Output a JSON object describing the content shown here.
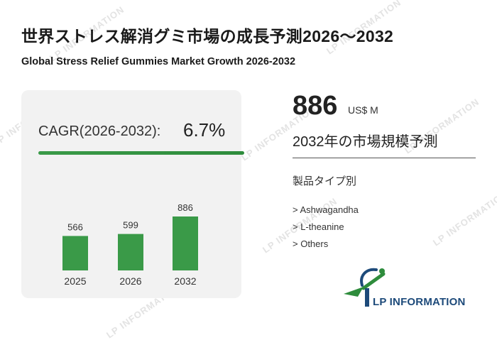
{
  "header": {
    "title_jp": "世界ストレス解消グミ市場の成長予測2026～2032",
    "title_en": "Global Stress Relief Gummies Market Growth 2026-2032"
  },
  "cagr": {
    "label": "CAGR(2026-2032):",
    "value": "6.7%"
  },
  "summary": {
    "value": "886",
    "unit": "US$ M",
    "label": "2032年の市場規模予測"
  },
  "segments": {
    "title": "製品タイプ別",
    "items": [
      "> Ashwagandha",
      "> L-theanine",
      "> Others"
    ]
  },
  "brand": {
    "logo_text": "LP INFORMATION",
    "watermark_text": "LP INFORMATION"
  },
  "colors": {
    "bar": "#3a9a48",
    "accent_green": "#2e8c3c",
    "brand_blue": "#1d4a7a",
    "panel_bg": "#f2f2f2"
  },
  "chart_data": {
    "type": "bar",
    "categories": [
      "2025",
      "2026",
      "2032"
    ],
    "values": [
      566,
      599,
      886
    ],
    "ylim": [
      0,
      900
    ]
  }
}
